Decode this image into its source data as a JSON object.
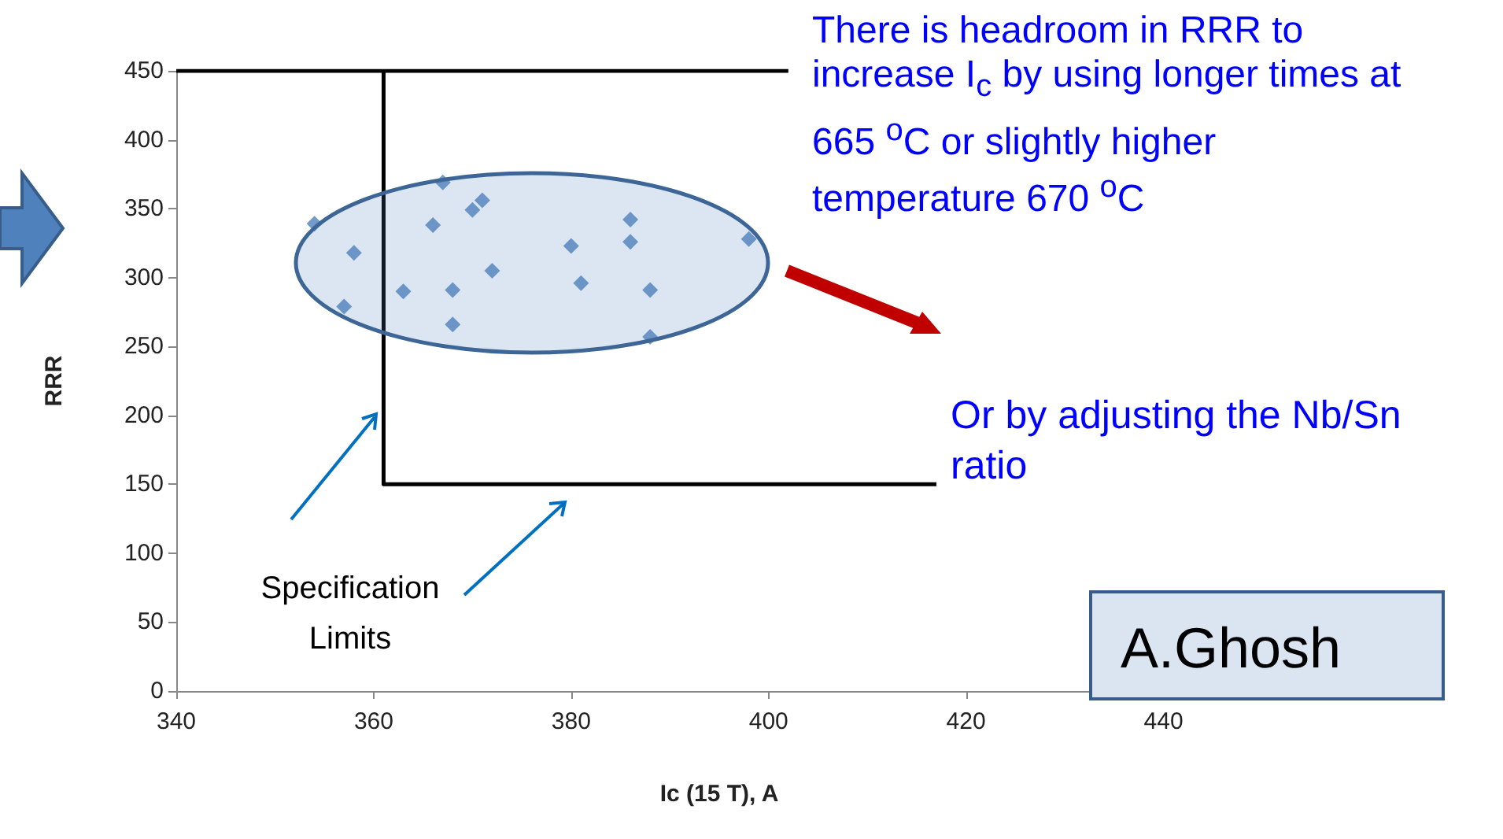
{
  "chart_data": {
    "type": "scatter",
    "xlabel": "Ic (15 T), A",
    "ylabel": "RRR",
    "xlim": [
      340,
      450
    ],
    "xticks": [
      340,
      360,
      380,
      400,
      420,
      440
    ],
    "ylim": [
      0,
      450
    ],
    "yticks": [
      0,
      50,
      100,
      150,
      200,
      250,
      300,
      350,
      400,
      450
    ],
    "grid": false,
    "marker": "diamond",
    "series": [
      {
        "color": "#4f81bd",
        "x": [
          354,
          358,
          357,
          363,
          366,
          367,
          368,
          368,
          370,
          371,
          372,
          380,
          381,
          386,
          386,
          388,
          388,
          398
        ],
        "values": [
          339,
          318,
          279,
          290,
          338,
          369,
          291,
          266,
          349,
          356,
          305,
          323,
          296,
          342,
          326,
          291,
          257,
          328
        ]
      },
      {
        "type": "line",
        "color": "#000000",
        "marker": "none",
        "x": [
          361,
          361,
          417
        ],
        "values": [
          450,
          150,
          150
        ]
      },
      {
        "type": "line",
        "color": "#000000",
        "marker": "none",
        "x": [
          340,
          402
        ],
        "values": [
          450,
          450
        ]
      }
    ],
    "annotations": [
      "There is headroom in RRR to increase I$_{c}$ by using longer times at 665 $^{o}$C or slightly higher temperature 670 $^{o}$C",
      "Or by adjusting the Nb/Sn ratio",
      "Specification Limits",
      "A.Ghosh"
    ]
  }
}
